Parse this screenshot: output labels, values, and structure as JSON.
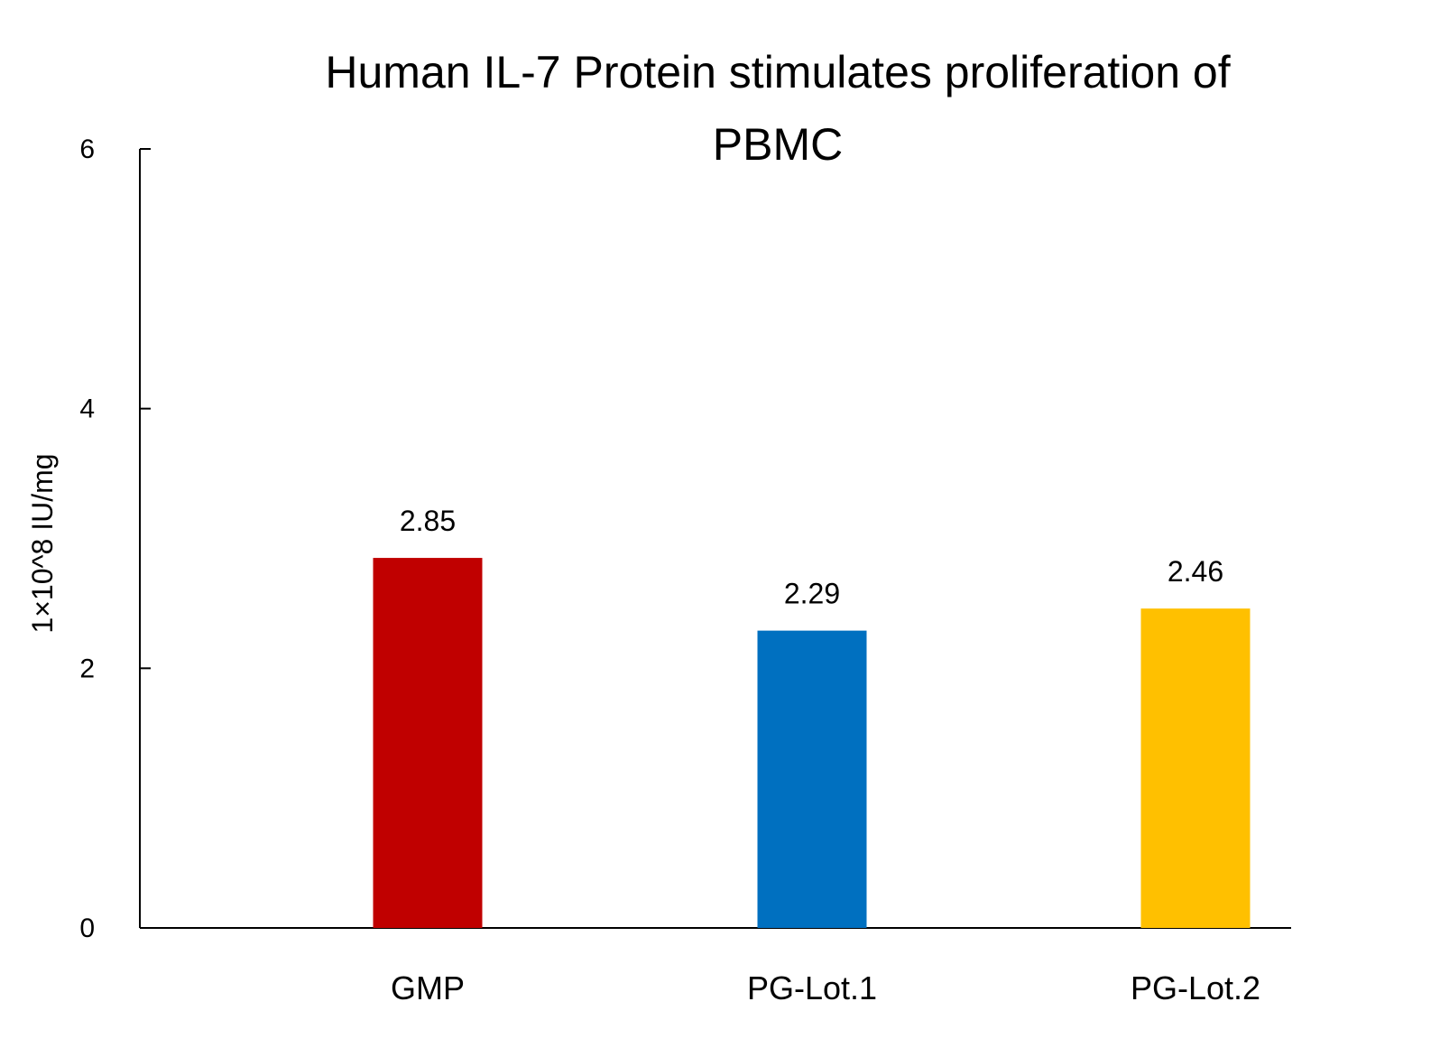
{
  "chart_data": {
    "type": "bar",
    "title_lines": [
      "Human IL-7 Protein stimulates proliferation of",
      "PBMC"
    ],
    "ylabel": "1×10^8 IU/mg",
    "xlabel": "",
    "categories": [
      "GMP",
      "PG-Lot.1",
      "PG-Lot.2"
    ],
    "values": [
      2.85,
      2.29,
      2.46
    ],
    "data_labels": [
      "2.85",
      "2.29",
      "2.46"
    ],
    "colors": [
      "#C00000",
      "#0070C0",
      "#FFC000"
    ],
    "ylim": [
      0,
      6
    ],
    "yticks": [
      0,
      2,
      4,
      6
    ],
    "grid": false,
    "legend": "none"
  }
}
